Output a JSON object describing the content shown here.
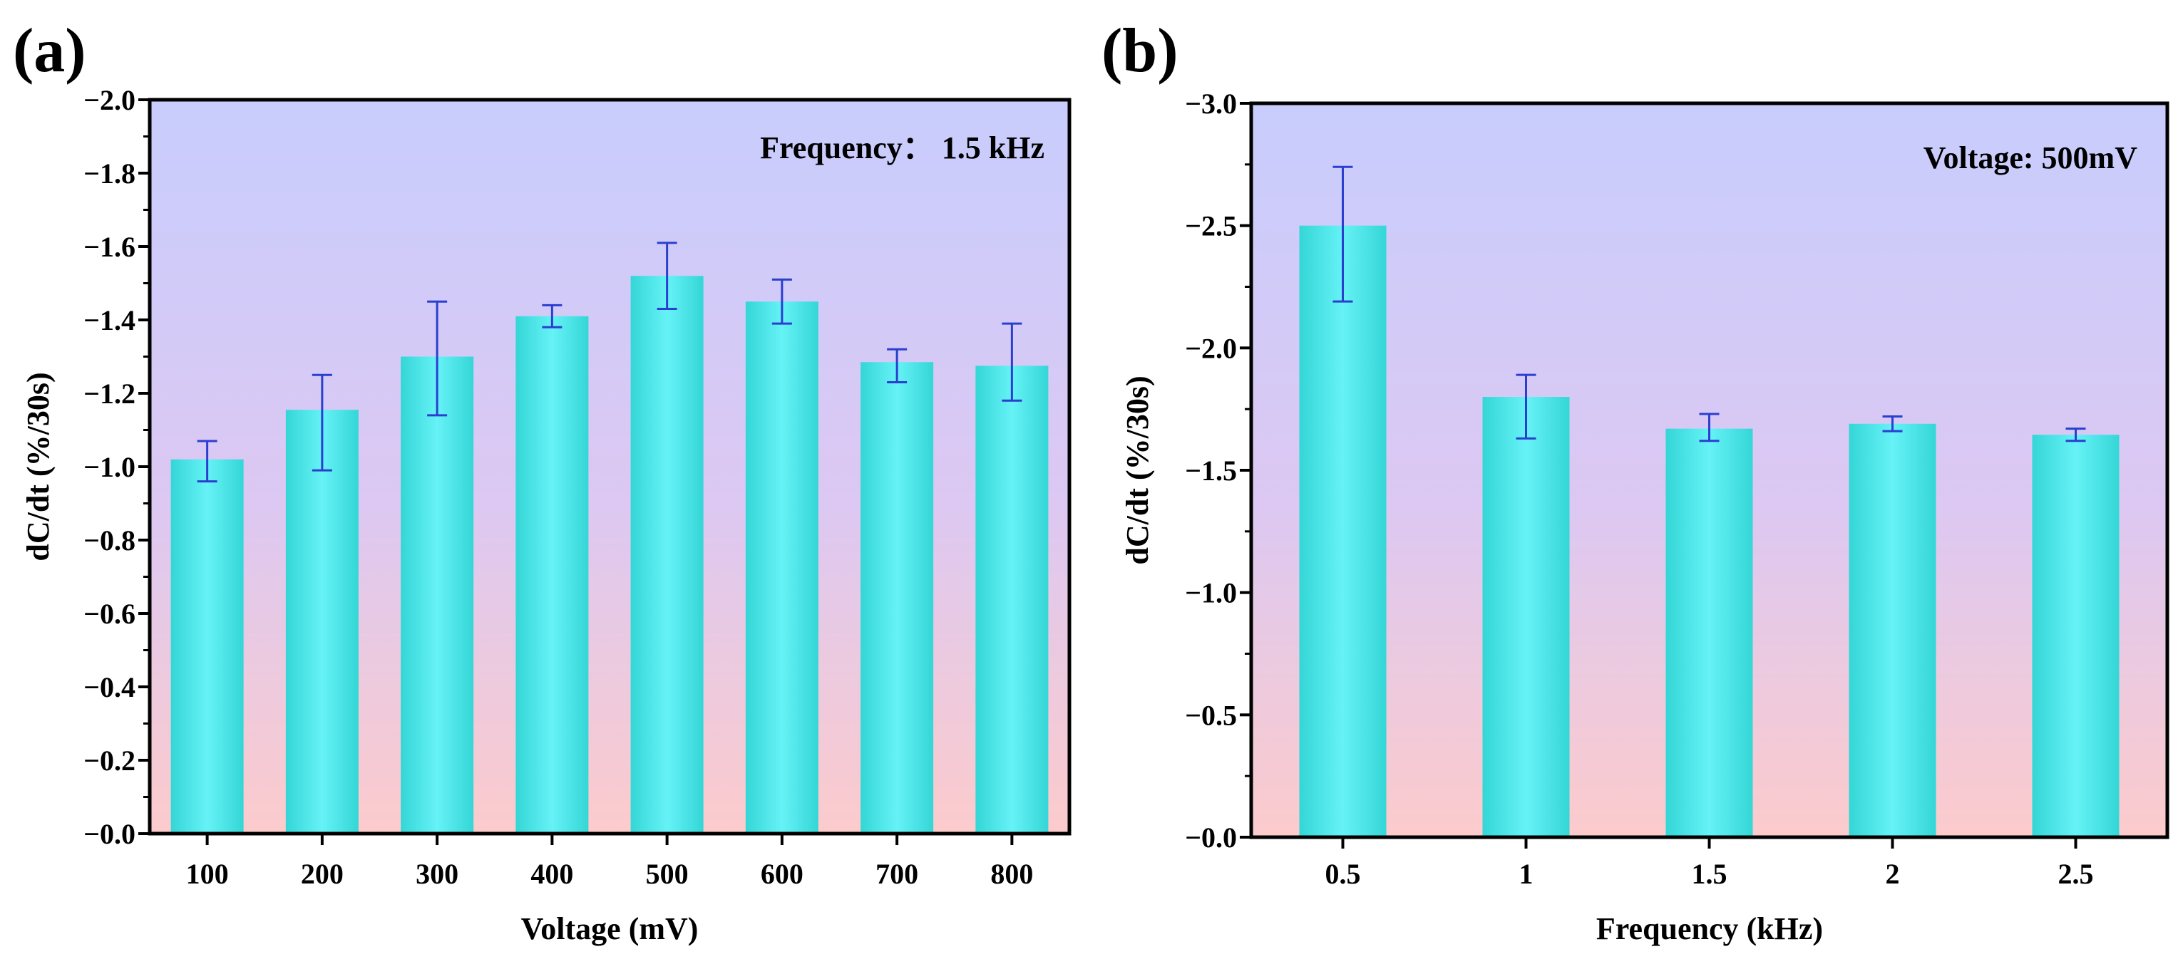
{
  "figure": {
    "colors": {
      "bar_center": "#66f2f7",
      "bar_edge": "#34d6d6",
      "error_bar": "#2b3fcf",
      "bg_top": "#c8cdfd",
      "bg_bottom": "#fccbcc",
      "axis": "#000000"
    }
  },
  "chart_data": [
    {
      "type": "bar",
      "panel_label": "(a)",
      "title": "",
      "xlabel": "Voltage (mV)",
      "ylabel": "dC/dt (%/30s)",
      "annotation": "Frequency： 1.5 kHz",
      "annotation_position": "top-right",
      "categories": [
        "100",
        "200",
        "300",
        "400",
        "500",
        "600",
        "700",
        "800"
      ],
      "values": [
        -1.02,
        -1.155,
        -1.3,
        -1.41,
        -1.52,
        -1.45,
        -1.285,
        -1.275
      ],
      "error_upper": [
        -1.07,
        -1.25,
        -1.45,
        -1.44,
        -1.61,
        -1.51,
        -1.32,
        -1.39
      ],
      "error_lower": [
        -0.96,
        -0.99,
        -1.14,
        -1.38,
        -1.43,
        -1.39,
        -1.23,
        -1.18
      ],
      "ylim": [
        0,
        -2.0
      ],
      "y_axis_inverted": true,
      "yticks": [
        0,
        -0.2,
        -0.4,
        -0.6,
        -0.8,
        -1.0,
        -1.2,
        -1.4,
        -1.6,
        -1.8,
        -2.0
      ],
      "ytick_labels": [
        "−0.0",
        "−0.2",
        "−0.4",
        "−0.6",
        "−0.8",
        "−1.0",
        "−1.2",
        "−1.4",
        "−1.6",
        "−1.8",
        "−2.0"
      ],
      "grid": false,
      "legend": "none"
    },
    {
      "type": "bar",
      "panel_label": "(b)",
      "title": "",
      "xlabel": "Frequency (kHz)",
      "ylabel": "dC/dt (%/30s)",
      "annotation": "Voltage: 500mV",
      "annotation_position": "top-right",
      "categories": [
        "0.5",
        "1",
        "1.5",
        "2",
        "2.5"
      ],
      "values": [
        -2.5,
        -1.8,
        -1.67,
        -1.69,
        -1.645
      ],
      "error_upper": [
        -2.74,
        -1.89,
        -1.73,
        -1.72,
        -1.67
      ],
      "error_lower": [
        -2.19,
        -1.63,
        -1.62,
        -1.66,
        -1.62
      ],
      "ylim": [
        0,
        -3.0
      ],
      "y_axis_inverted": true,
      "yticks": [
        0,
        -0.5,
        -1.0,
        -1.5,
        -2.0,
        -2.5,
        -3.0
      ],
      "ytick_labels": [
        "−0.0",
        "−0.5",
        "−1.0",
        "−1.5",
        "−2.0",
        "−2.5",
        "−3.0"
      ],
      "grid": false,
      "legend": "none"
    }
  ]
}
